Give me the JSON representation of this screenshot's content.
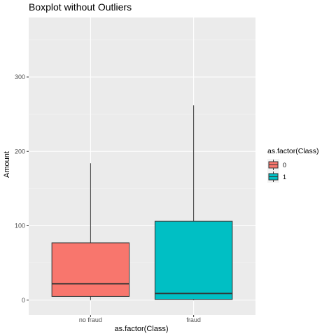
{
  "chart_data": {
    "type": "boxplot",
    "title": "Boxplot without Outliers",
    "xlabel": "as.factor(Class)",
    "ylabel": "Amount",
    "categories": [
      "no fraud",
      "fraud"
    ],
    "ylim": [
      -20,
      380
    ],
    "yticks": [
      0,
      100,
      200,
      300
    ],
    "grid": true,
    "legend": {
      "title": "as.factor(Class)",
      "position": "right",
      "items": [
        {
          "label": "0",
          "color": "#F8766D"
        },
        {
          "label": "1",
          "color": "#00BFC4"
        }
      ]
    },
    "boxes": [
      {
        "category": "no fraud",
        "class": "0",
        "color": "#F8766D",
        "min": 0,
        "q1": 5,
        "median": 22,
        "q3": 77,
        "max": 184
      },
      {
        "category": "fraud",
        "class": "1",
        "color": "#00BFC4",
        "min": 0,
        "q1": 1,
        "median": 9,
        "q3": 106,
        "max": 262
      }
    ]
  }
}
